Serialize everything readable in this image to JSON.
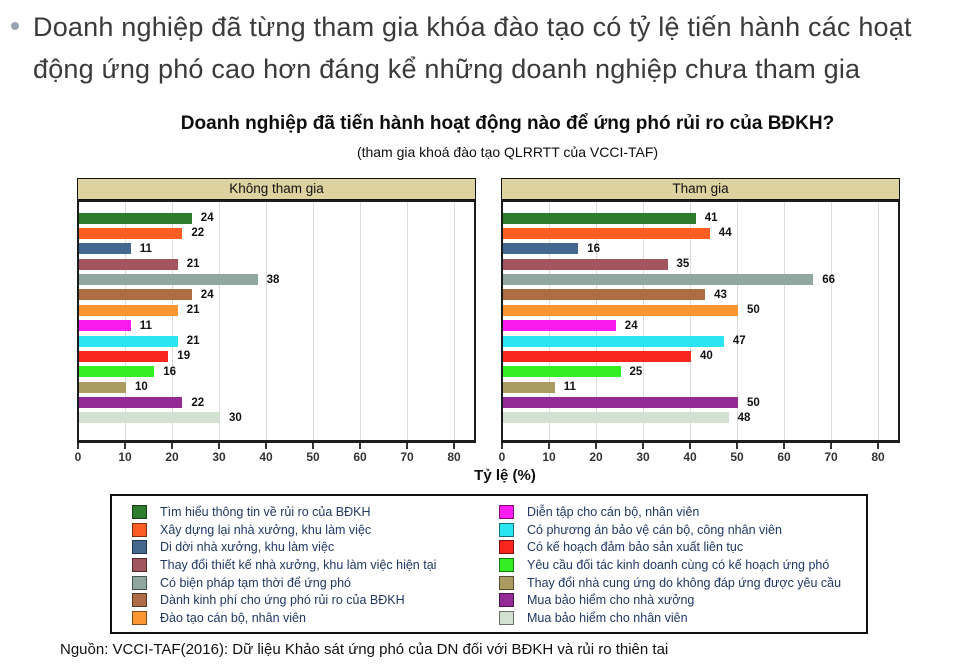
{
  "page": {
    "heading": "Doanh nghiệp đã từng tham gia khóa đào tạo có tỷ lệ tiến hành các hoạt động ứng phó cao hơn đáng kể những doanh nghiệp chưa tham gia",
    "source": "Nguồn: VCCI-TAF(2016): Dữ liệu Khảo sát ứng phó của DN đối với BĐKH và rủi ro thiên tai"
  },
  "chart_data": {
    "type": "bar",
    "orientation": "horizontal",
    "title": "Doanh nghiệp đã tiến hành hoạt động nào để ứng phó rủi ro của BĐKH?",
    "subtitle": "(tham gia khoá đào tạo QLRRTT của VCCI-TAF)",
    "xlabel": "Tỷ lệ (%)",
    "xlim": [
      0,
      85
    ],
    "xticks": [
      0,
      10,
      20,
      30,
      40,
      50,
      60,
      70,
      80
    ],
    "grid": true,
    "legend_position": "bottom",
    "panel_header_bg": "#ddd3a0",
    "categories": [
      "Tìm hiểu thông tin về rủi ro của BĐKH",
      "Xây dựng lại nhà xưởng, khu làm việc",
      "Di dời nhà xưởng, khu làm việc",
      "Thay đổi thiết kế nhà xưởng, khu làm việc hiện tại",
      "Có biện pháp tạm thời để ứng phó",
      "Dành kinh phí cho ứng phó rủi ro của BĐKH",
      "Đào tạo cán bộ, nhân viên",
      "Diễn tập cho cán bộ, nhân viên",
      "Có phương án bảo vệ cán bộ, công nhân viên",
      "Có kế hoạch đảm bảo sản xuất liên tục",
      "Yêu cầu đối tác kinh doanh cùng có kế hoạch ứng phó",
      "Thay đổi nhà cung ứng do không đáp ứng được yêu cầu",
      "Mua bảo hiểm cho nhà xưởng",
      "Mua bảo hiểm cho nhân viên"
    ],
    "colors": [
      "#2e7d2e",
      "#fb5d23",
      "#44688e",
      "#a2545f",
      "#8fa79e",
      "#ad6c44",
      "#fb9632",
      "#fb1bee",
      "#2be5f3",
      "#f8251f",
      "#33ee22",
      "#aa9b61",
      "#942b94",
      "#d3e1d2"
    ],
    "series": [
      {
        "name": "Không tham gia",
        "values": [
          24,
          22,
          11,
          21,
          38,
          24,
          21,
          11,
          21,
          19,
          16,
          10,
          22,
          30
        ]
      },
      {
        "name": "Tham gia",
        "values": [
          41,
          44,
          16,
          35,
          66,
          43,
          50,
          24,
          47,
          40,
          25,
          11,
          50,
          48
        ]
      }
    ]
  }
}
